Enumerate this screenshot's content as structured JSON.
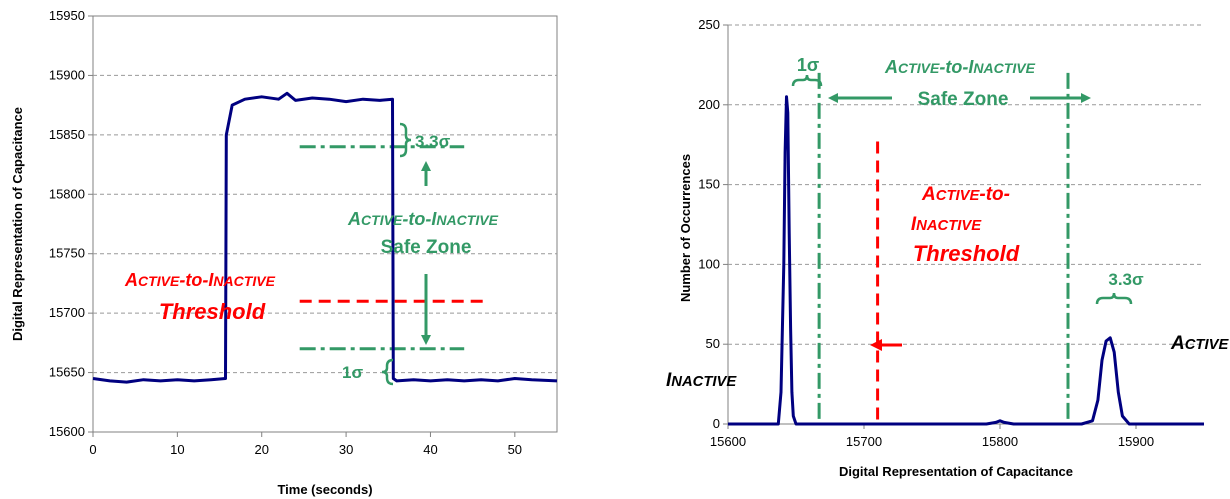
{
  "colors": {
    "series": "#000080",
    "safe_zone": "#339966",
    "threshold": "#ff0000",
    "grid": "#999999"
  },
  "chart_data": [
    {
      "type": "line",
      "title": "",
      "xlabel": "Time (seconds)",
      "ylabel": "Digital Representation of Capacitance",
      "xlim": [
        0,
        55
      ],
      "ylim": [
        15600,
        15950
      ],
      "xticks": [
        0,
        10,
        20,
        30,
        40,
        50
      ],
      "yticks": [
        15600,
        15650,
        15700,
        15750,
        15800,
        15850,
        15900,
        15950
      ],
      "grid": "horizontal dashed",
      "series": [
        {
          "x": [
            0,
            2,
            4,
            6,
            8,
            10,
            12,
            14,
            15.7,
            15.8,
            16.5,
            18,
            20,
            22,
            23,
            24,
            26,
            28,
            30,
            32,
            34,
            35.5,
            35.6,
            36,
            38,
            40,
            42,
            44,
            46,
            48,
            50,
            52,
            55
          ],
          "y": [
            15645,
            15643,
            15642,
            15644,
            15643,
            15644,
            15643,
            15644,
            15645,
            15850,
            15875,
            15880,
            15882,
            15880,
            15885,
            15879,
            15881,
            15880,
            15878,
            15880,
            15879,
            15880,
            15645,
            15643,
            15644,
            15643,
            15644,
            15643,
            15644,
            15643,
            15645,
            15644,
            15643
          ]
        }
      ],
      "reference_lines": [
        {
          "kind": "safe-zone-boundary",
          "y": 15840
        },
        {
          "kind": "safe-zone-boundary",
          "y": 15670
        },
        {
          "kind": "threshold",
          "y": 15710
        }
      ],
      "annotations": {
        "threshold_label_line1_caps1": "A",
        "threshold_label_line1_small1": "CTIVE",
        "threshold_label_line1_mid": "-to-",
        "threshold_label_line1_caps2": "I",
        "threshold_label_line1_small2": "NACTIVE",
        "threshold_label_line2": "Threshold",
        "safe_zone_line1_caps1": "A",
        "safe_zone_line1_small1": "CTIVE",
        "safe_zone_line1_mid": "-to-",
        "safe_zone_line1_caps2": "I",
        "safe_zone_line1_small2": "NACTIVE",
        "safe_zone_line2": "Safe Zone",
        "sigma_upper": "3.3σ",
        "sigma_lower": "1σ"
      }
    },
    {
      "type": "line",
      "title": "",
      "xlabel": "Digital Representation of Capacitance",
      "ylabel": "Number of Occurrences",
      "xlim": [
        15600,
        15950
      ],
      "ylim": [
        0,
        250
      ],
      "xticks": [
        15600,
        15700,
        15800,
        15900
      ],
      "yticks": [
        0,
        50,
        100,
        150,
        200,
        250
      ],
      "grid": "horizontal dashed",
      "series": [
        {
          "x": [
            15600,
            15637,
            15639,
            15641,
            15642,
            15643,
            15644,
            15645,
            15646,
            15647,
            15648,
            15650,
            15655,
            15700,
            15790,
            15797,
            15800,
            15803,
            15810,
            15860,
            15868,
            15872,
            15875,
            15878,
            15881,
            15884,
            15887,
            15890,
            15895,
            15950
          ],
          "y": [
            0,
            0,
            20,
            100,
            170,
            205,
            195,
            120,
            60,
            20,
            5,
            0,
            0,
            0,
            0,
            1,
            2,
            1,
            0,
            0,
            2,
            15,
            40,
            52,
            54,
            45,
            20,
            5,
            0,
            0
          ]
        }
      ],
      "reference_lines": [
        {
          "kind": "safe-zone-boundary",
          "x": 15667
        },
        {
          "kind": "safe-zone-boundary",
          "x": 15850
        },
        {
          "kind": "threshold",
          "x": 15710
        }
      ],
      "annotations": {
        "sigma_left": "1σ",
        "safe_zone_line1_caps1": "A",
        "safe_zone_line1_small1": "CTIVE",
        "safe_zone_line1_mid": "-to-",
        "safe_zone_line1_caps2": "I",
        "safe_zone_line1_small2": "NACTIVE",
        "safe_zone_line2": "Safe Zone",
        "threshold_line1_caps1": "A",
        "threshold_line1_small1": "CTIVE",
        "threshold_line1_mid": "-to-",
        "threshold_line2_caps": "I",
        "threshold_line2_small": "NACTIVE",
        "threshold_line3": "Threshold",
        "sigma_right": "3.3σ",
        "active_caps": "A",
        "active_small": "CTIVE",
        "inactive_caps": "I",
        "inactive_small": "NACTIVE"
      }
    }
  ]
}
